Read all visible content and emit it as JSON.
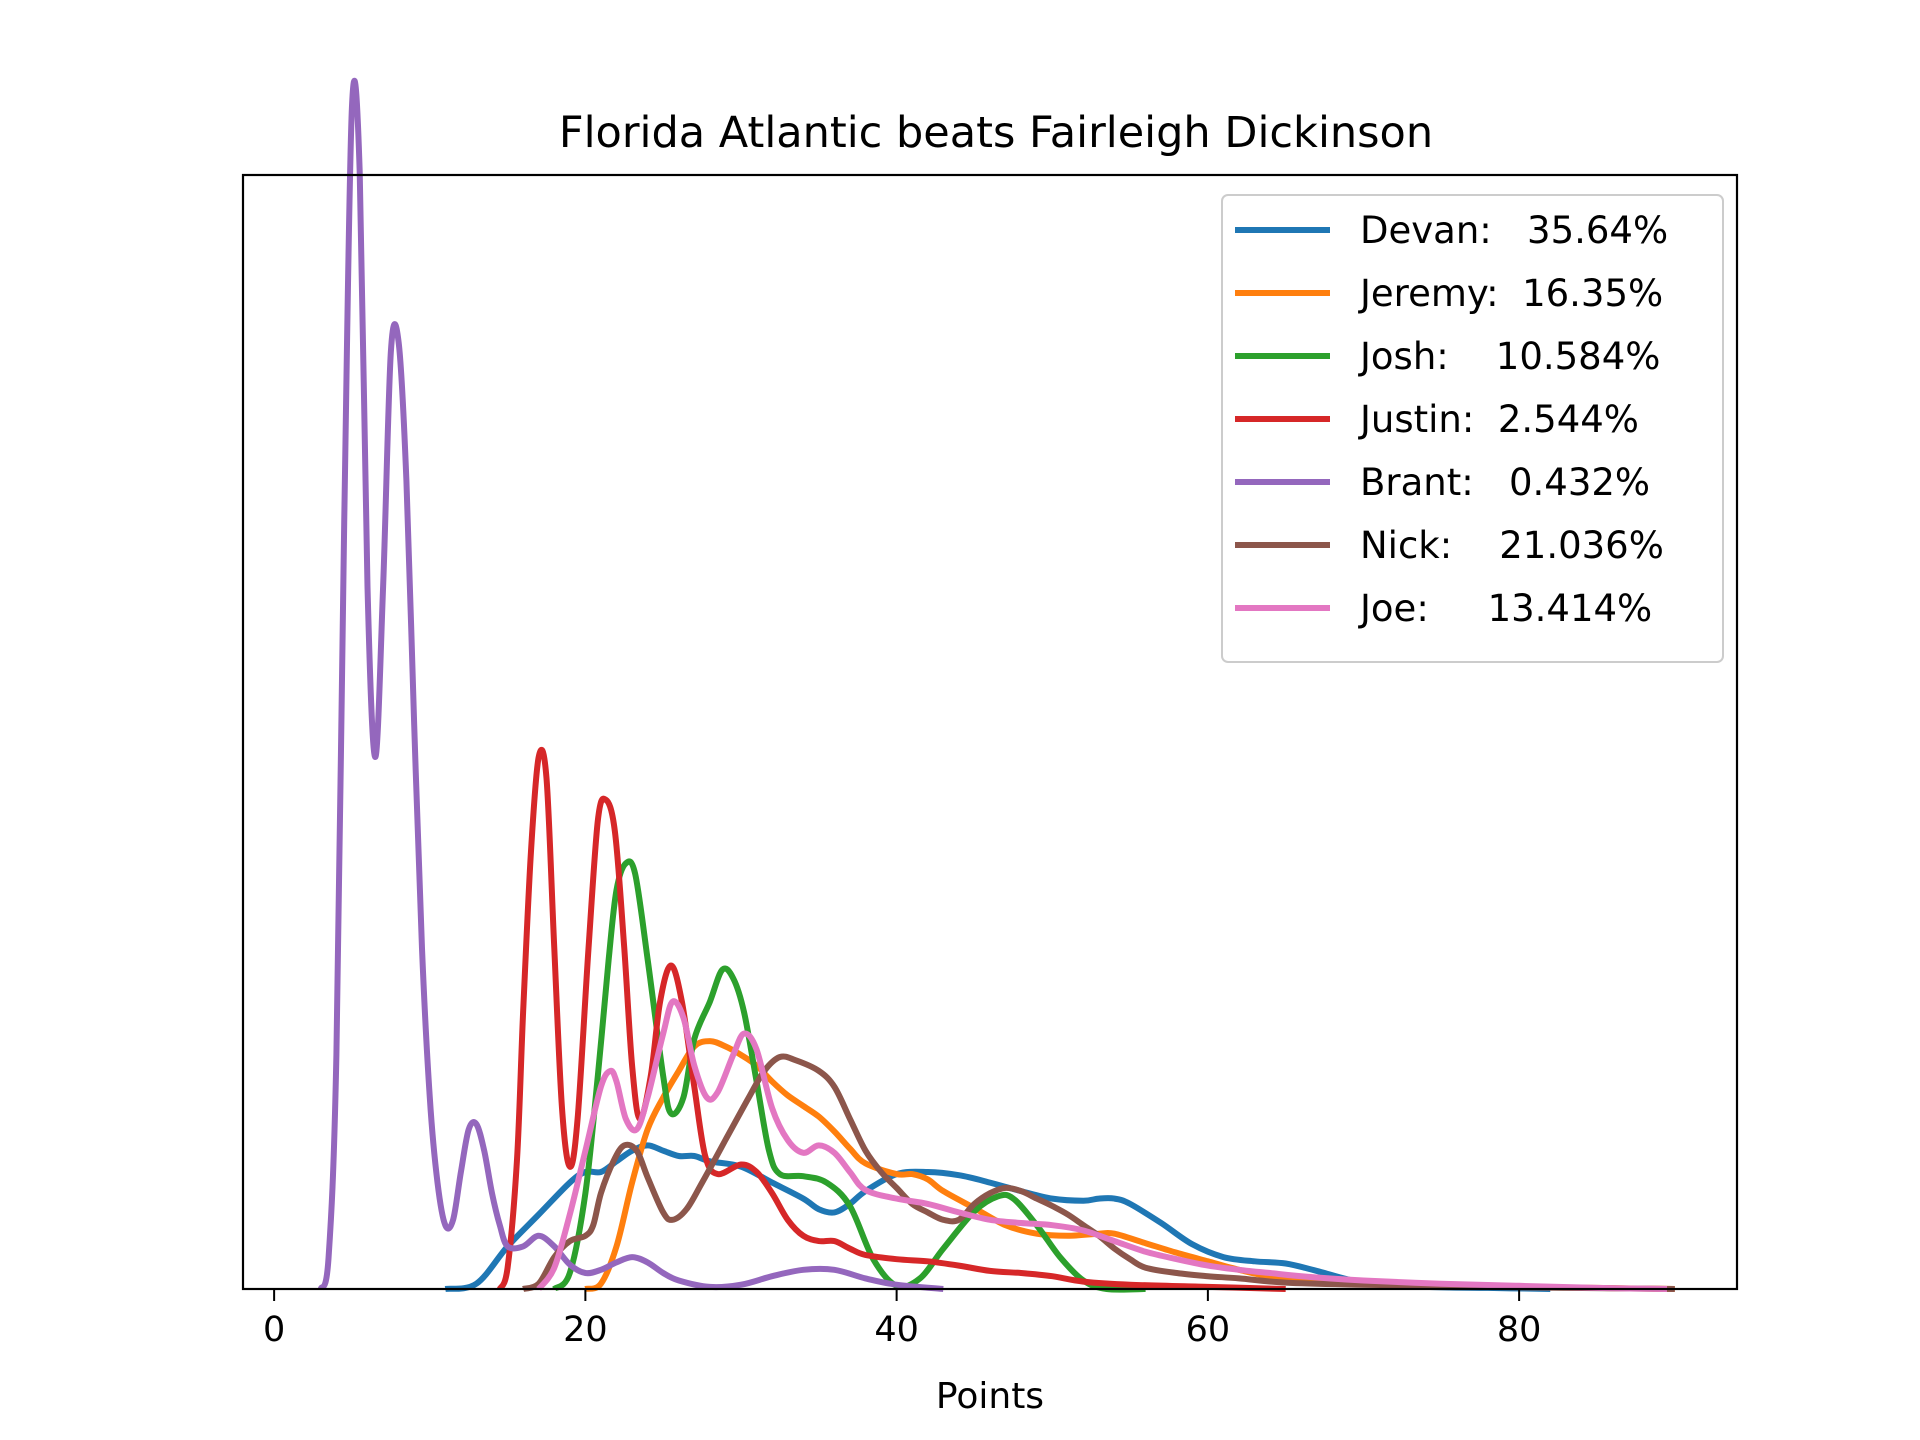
{
  "chart_data": {
    "type": "line",
    "title": "Florida Atlantic beats Fairleigh Dickinson",
    "xlabel": "Points",
    "ylabel": "",
    "xlim": [
      -2,
      94
    ],
    "ylim": [
      0,
      1.0
    ],
    "xticks": [
      0,
      20,
      40,
      60,
      80
    ],
    "yticks_visible": false,
    "grid": false,
    "legend_position": "top-right",
    "series": [
      {
        "name": "Devan:   35.64%",
        "color": "#1f77b4",
        "points": [
          [
            11,
            0
          ],
          [
            13,
            0.005
          ],
          [
            15,
            0.04
          ],
          [
            17,
            0.07
          ],
          [
            19,
            0.1
          ],
          [
            20,
            0.11
          ],
          [
            21,
            0.11
          ],
          [
            22,
            0.12
          ],
          [
            23,
            0.13
          ],
          [
            24,
            0.135
          ],
          [
            25,
            0.13
          ],
          [
            26,
            0.125
          ],
          [
            27,
            0.125
          ],
          [
            28,
            0.12
          ],
          [
            30,
            0.115
          ],
          [
            32,
            0.1
          ],
          [
            34,
            0.085
          ],
          [
            35,
            0.075
          ],
          [
            36,
            0.072
          ],
          [
            37,
            0.08
          ],
          [
            38,
            0.092
          ],
          [
            40,
            0.108
          ],
          [
            42,
            0.11
          ],
          [
            44,
            0.107
          ],
          [
            46,
            0.1
          ],
          [
            48,
            0.092
          ],
          [
            50,
            0.085
          ],
          [
            52,
            0.083
          ],
          [
            53,
            0.085
          ],
          [
            54,
            0.085
          ],
          [
            55,
            0.08
          ],
          [
            57,
            0.062
          ],
          [
            59,
            0.042
          ],
          [
            61,
            0.03
          ],
          [
            63,
            0.026
          ],
          [
            65,
            0.024
          ],
          [
            67,
            0.017
          ],
          [
            70,
            0.006
          ],
          [
            74,
            0.002
          ],
          [
            78,
            0.001
          ],
          [
            82,
            0
          ]
        ]
      },
      {
        "name": "Jeremy:  16.35%",
        "color": "#ff7f0e",
        "points": [
          [
            20,
            0
          ],
          [
            21,
            0.005
          ],
          [
            22,
            0.04
          ],
          [
            23,
            0.1
          ],
          [
            24,
            0.15
          ],
          [
            25,
            0.18
          ],
          [
            26,
            0.205
          ],
          [
            27,
            0.228
          ],
          [
            28,
            0.233
          ],
          [
            29,
            0.228
          ],
          [
            30,
            0.22
          ],
          [
            31,
            0.21
          ],
          [
            32,
            0.195
          ],
          [
            33,
            0.182
          ],
          [
            34,
            0.172
          ],
          [
            35,
            0.162
          ],
          [
            36,
            0.148
          ],
          [
            37,
            0.132
          ],
          [
            38,
            0.118
          ],
          [
            40,
            0.108
          ],
          [
            41,
            0.108
          ],
          [
            42,
            0.103
          ],
          [
            43,
            0.092
          ],
          [
            45,
            0.076
          ],
          [
            47,
            0.06
          ],
          [
            49,
            0.052
          ],
          [
            51,
            0.05
          ],
          [
            53,
            0.052
          ],
          [
            54,
            0.052
          ],
          [
            56,
            0.043
          ],
          [
            58,
            0.034
          ],
          [
            60,
            0.026
          ],
          [
            62,
            0.018
          ],
          [
            64,
            0.012
          ],
          [
            67,
            0.009
          ],
          [
            70,
            0.006
          ],
          [
            75,
            0.004
          ],
          [
            80,
            0.002
          ],
          [
            85,
            0.001
          ],
          [
            90,
            0
          ]
        ]
      },
      {
        "name": "Josh:    10.584%",
        "color": "#2ca02c",
        "points": [
          [
            18,
            0
          ],
          [
            19,
            0.015
          ],
          [
            20,
            0.09
          ],
          [
            20.8,
            0.2
          ],
          [
            21.5,
            0.31
          ],
          [
            22,
            0.375
          ],
          [
            22.6,
            0.4
          ],
          [
            23.2,
            0.39
          ],
          [
            24,
            0.31
          ],
          [
            25,
            0.2
          ],
          [
            25.5,
            0.165
          ],
          [
            26.3,
            0.18
          ],
          [
            27,
            0.235
          ],
          [
            28,
            0.27
          ],
          [
            28.8,
            0.3
          ],
          [
            29.5,
            0.292
          ],
          [
            30.2,
            0.26
          ],
          [
            31,
            0.195
          ],
          [
            31.8,
            0.13
          ],
          [
            32.5,
            0.108
          ],
          [
            34,
            0.106
          ],
          [
            35.5,
            0.1
          ],
          [
            37,
            0.078
          ],
          [
            38.5,
            0.028
          ],
          [
            40,
            0.003
          ],
          [
            41.5,
            0.01
          ],
          [
            43,
            0.038
          ],
          [
            45,
            0.073
          ],
          [
            46.5,
            0.087
          ],
          [
            47.5,
            0.085
          ],
          [
            49,
            0.06
          ],
          [
            50.5,
            0.03
          ],
          [
            52,
            0.008
          ],
          [
            53.5,
            0
          ],
          [
            56,
            0
          ]
        ]
      },
      {
        "name": "Justin:  2.544%",
        "color": "#d62728",
        "points": [
          [
            14.5,
            0
          ],
          [
            15,
            0.02
          ],
          [
            15.6,
            0.12
          ],
          [
            16,
            0.26
          ],
          [
            16.5,
            0.41
          ],
          [
            17,
            0.5
          ],
          [
            17.5,
            0.48
          ],
          [
            18,
            0.32
          ],
          [
            18.5,
            0.17
          ],
          [
            19,
            0.115
          ],
          [
            19.5,
            0.16
          ],
          [
            20.2,
            0.32
          ],
          [
            20.8,
            0.44
          ],
          [
            21.3,
            0.46
          ],
          [
            21.9,
            0.43
          ],
          [
            22.5,
            0.32
          ],
          [
            23,
            0.21
          ],
          [
            23.5,
            0.16
          ],
          [
            24.2,
            0.2
          ],
          [
            24.8,
            0.27
          ],
          [
            25.5,
            0.304
          ],
          [
            26.2,
            0.27
          ],
          [
            27,
            0.19
          ],
          [
            27.7,
            0.125
          ],
          [
            28.5,
            0.108
          ],
          [
            30,
            0.117
          ],
          [
            31,
            0.11
          ],
          [
            32,
            0.09
          ],
          [
            33,
            0.065
          ],
          [
            34,
            0.05
          ],
          [
            35,
            0.045
          ],
          [
            36,
            0.045
          ],
          [
            37,
            0.038
          ],
          [
            38,
            0.032
          ],
          [
            40,
            0.028
          ],
          [
            42,
            0.026
          ],
          [
            44,
            0.022
          ],
          [
            46,
            0.017
          ],
          [
            48,
            0.015
          ],
          [
            50,
            0.012
          ],
          [
            52,
            0.007
          ],
          [
            55,
            0.004
          ],
          [
            60,
            0.002
          ],
          [
            65,
            0
          ]
        ]
      },
      {
        "name": "Brant:   0.432%",
        "color": "#9467bd",
        "points": [
          [
            3,
            0
          ],
          [
            3.5,
            0.03
          ],
          [
            4,
            0.22
          ],
          [
            4.5,
            0.72
          ],
          [
            5,
            1.11
          ],
          [
            5.5,
            1.05
          ],
          [
            6,
            0.66
          ],
          [
            6.5,
            0.5
          ],
          [
            7,
            0.66
          ],
          [
            7.5,
            0.88
          ],
          [
            8,
            0.89
          ],
          [
            8.5,
            0.76
          ],
          [
            9,
            0.53
          ],
          [
            9.5,
            0.32
          ],
          [
            10,
            0.18
          ],
          [
            10.5,
            0.1
          ],
          [
            11,
            0.06
          ],
          [
            11.5,
            0.065
          ],
          [
            12,
            0.11
          ],
          [
            12.5,
            0.15
          ],
          [
            13,
            0.155
          ],
          [
            13.5,
            0.13
          ],
          [
            14,
            0.09
          ],
          [
            14.5,
            0.06
          ],
          [
            15,
            0.04
          ],
          [
            16,
            0.04
          ],
          [
            17,
            0.05
          ],
          [
            18,
            0.04
          ],
          [
            19,
            0.023
          ],
          [
            20,
            0.015
          ],
          [
            21,
            0.018
          ],
          [
            22,
            0.025
          ],
          [
            23,
            0.03
          ],
          [
            24,
            0.025
          ],
          [
            25,
            0.015
          ],
          [
            26,
            0.008
          ],
          [
            28,
            0.002
          ],
          [
            30,
            0.004
          ],
          [
            32,
            0.012
          ],
          [
            34,
            0.018
          ],
          [
            36,
            0.018
          ],
          [
            38,
            0.01
          ],
          [
            40,
            0.004
          ],
          [
            43,
            0
          ]
        ]
      },
      {
        "name": "Nick:    21.036%",
        "color": "#8c564b",
        "points": [
          [
            16,
            0
          ],
          [
            17,
            0.005
          ],
          [
            18,
            0.03
          ],
          [
            19,
            0.045
          ],
          [
            20,
            0.05
          ],
          [
            20.5,
            0.06
          ],
          [
            21,
            0.09
          ],
          [
            21.8,
            0.12
          ],
          [
            22.5,
            0.135
          ],
          [
            23.3,
            0.13
          ],
          [
            24,
            0.105
          ],
          [
            25,
            0.072
          ],
          [
            25.6,
            0.065
          ],
          [
            26.5,
            0.075
          ],
          [
            27.5,
            0.1
          ],
          [
            29,
            0.14
          ],
          [
            30.5,
            0.18
          ],
          [
            31.5,
            0.205
          ],
          [
            32.5,
            0.218
          ],
          [
            33.5,
            0.215
          ],
          [
            35,
            0.205
          ],
          [
            36,
            0.19
          ],
          [
            37,
            0.16
          ],
          [
            38,
            0.13
          ],
          [
            39,
            0.11
          ],
          [
            40,
            0.095
          ],
          [
            41,
            0.08
          ],
          [
            42,
            0.072
          ],
          [
            43,
            0.065
          ],
          [
            44,
            0.065
          ],
          [
            45,
            0.08
          ],
          [
            46,
            0.09
          ],
          [
            47,
            0.095
          ],
          [
            48,
            0.092
          ],
          [
            49,
            0.085
          ],
          [
            50,
            0.078
          ],
          [
            51,
            0.07
          ],
          [
            52,
            0.06
          ],
          [
            53,
            0.05
          ],
          [
            54,
            0.038
          ],
          [
            55,
            0.028
          ],
          [
            56,
            0.02
          ],
          [
            58,
            0.015
          ],
          [
            60,
            0.012
          ],
          [
            62,
            0.01
          ],
          [
            65,
            0.006
          ],
          [
            70,
            0.004
          ],
          [
            78,
            0.002
          ],
          [
            90,
            0
          ]
        ]
      },
      {
        "name": "Joe:     13.414%",
        "color": "#e377c2",
        "points": [
          [
            17,
            0
          ],
          [
            18,
            0.02
          ],
          [
            19,
            0.07
          ],
          [
            20,
            0.13
          ],
          [
            21,
            0.19
          ],
          [
            21.6,
            0.205
          ],
          [
            22,
            0.195
          ],
          [
            22.6,
            0.16
          ],
          [
            23.3,
            0.15
          ],
          [
            24,
            0.18
          ],
          [
            25,
            0.24
          ],
          [
            25.6,
            0.27
          ],
          [
            26.3,
            0.255
          ],
          [
            27,
            0.21
          ],
          [
            27.8,
            0.18
          ],
          [
            28.5,
            0.185
          ],
          [
            29.5,
            0.22
          ],
          [
            30.2,
            0.24
          ],
          [
            31,
            0.225
          ],
          [
            32,
            0.17
          ],
          [
            33,
            0.14
          ],
          [
            34,
            0.128
          ],
          [
            35,
            0.135
          ],
          [
            36,
            0.128
          ],
          [
            37,
            0.11
          ],
          [
            38,
            0.093
          ],
          [
            40,
            0.085
          ],
          [
            42,
            0.08
          ],
          [
            44,
            0.072
          ],
          [
            46,
            0.065
          ],
          [
            48,
            0.062
          ],
          [
            50,
            0.06
          ],
          [
            52,
            0.055
          ],
          [
            54,
            0.045
          ],
          [
            56,
            0.035
          ],
          [
            58,
            0.028
          ],
          [
            60,
            0.022
          ],
          [
            62,
            0.018
          ],
          [
            64,
            0.015
          ],
          [
            66,
            0.012
          ],
          [
            70,
            0.008
          ],
          [
            75,
            0.005
          ],
          [
            80,
            0.003
          ],
          [
            85,
            0.001
          ],
          [
            89.5,
            0
          ]
        ]
      }
    ]
  }
}
